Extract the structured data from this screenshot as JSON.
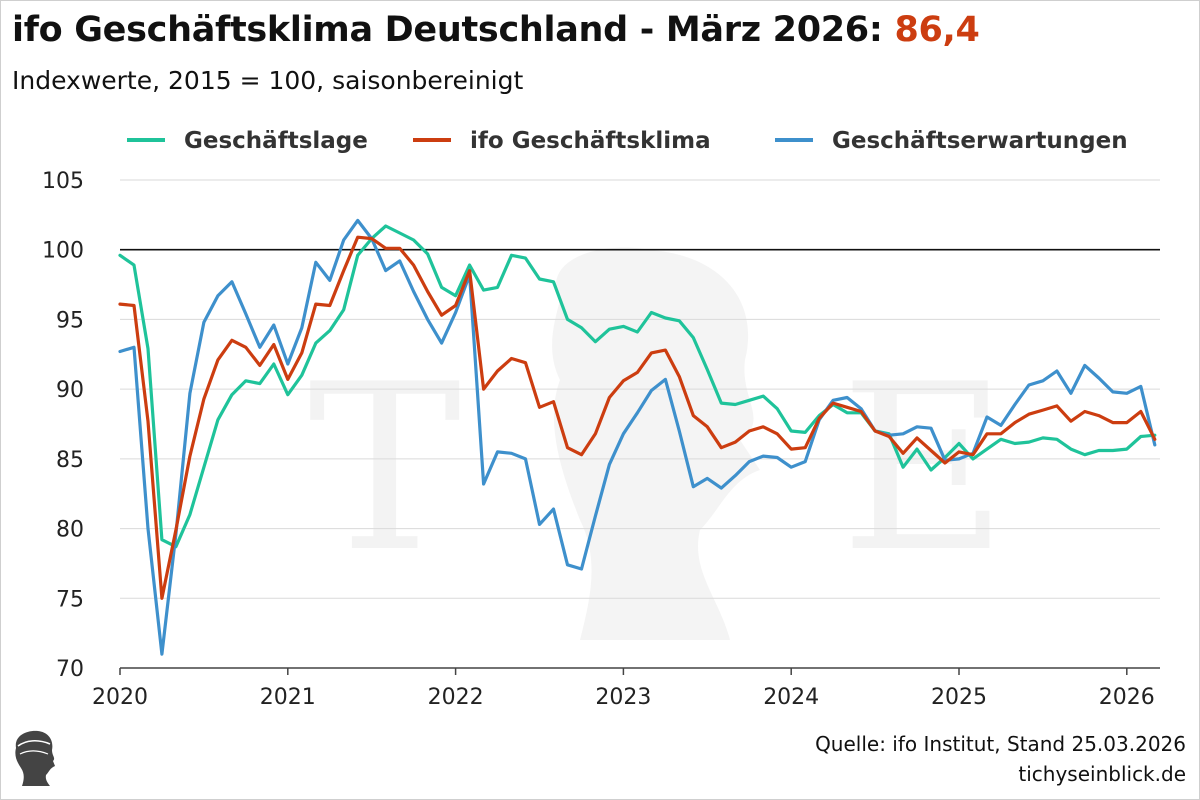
{
  "header": {
    "title": "ifo Geschäftsklima Deutschland - März 2026:",
    "title_value": "86,4",
    "subtitle": "Indexwerte, 2015 = 100, saisonbereinigt"
  },
  "footer": {
    "source": "Quelle: ifo Institut, Stand 25.03.2026",
    "publisher": "tichyseinblick.de"
  },
  "colors": {
    "geschaeftslage": "#1fc39a",
    "geschaeftsklima": "#cc3d10",
    "geschaeftserwartungen": "#3e90cc",
    "title_highlight": "#cc3d10"
  },
  "chart_data": {
    "type": "line",
    "x_start": "2020-01",
    "x_unit": "month",
    "xticks": [
      "2020",
      "2021",
      "2022",
      "2023",
      "2024",
      "2025",
      "2026"
    ],
    "yticks": [
      70,
      75,
      80,
      85,
      90,
      95,
      100,
      105
    ],
    "ylim": [
      70,
      105
    ],
    "reference_line": 100,
    "grid": "horizontal",
    "legend": "top",
    "series": [
      {
        "name": "Geschäftslage",
        "color_key": "geschaeftslage",
        "values": [
          99.6,
          98.9,
          92.9,
          79.2,
          78.7,
          81.0,
          84.4,
          87.8,
          89.6,
          90.6,
          90.4,
          91.8,
          89.6,
          91.0,
          93.3,
          94.2,
          95.7,
          99.6,
          100.8,
          101.7,
          101.2,
          100.7,
          99.7,
          97.3,
          96.7,
          98.9,
          97.1,
          97.3,
          99.6,
          99.4,
          97.9,
          97.7,
          95.0,
          94.4,
          93.4,
          94.3,
          94.5,
          94.1,
          95.5,
          95.1,
          94.9,
          93.7,
          91.4,
          89.0,
          88.9,
          89.2,
          89.5,
          88.6,
          87.0,
          86.9,
          88.1,
          88.9,
          88.3,
          88.3,
          87.0,
          86.8,
          84.4,
          85.7,
          84.2,
          85.1,
          86.1,
          85.0,
          85.7,
          86.4,
          86.1,
          86.2,
          86.5,
          86.4,
          85.7,
          85.3,
          85.6,
          85.6,
          85.7,
          86.6,
          86.7
        ]
      },
      {
        "name": "ifo Geschäftsklima",
        "color_key": "geschaeftsklima",
        "values": [
          96.1,
          96.0,
          87.7,
          75.0,
          79.9,
          85.2,
          89.3,
          92.1,
          93.5,
          93.0,
          91.7,
          93.2,
          90.7,
          92.6,
          96.1,
          96.0,
          98.5,
          100.9,
          100.8,
          100.1,
          100.1,
          98.9,
          97.0,
          95.3,
          96.0,
          98.5,
          90.0,
          91.3,
          92.2,
          91.9,
          88.7,
          89.1,
          85.8,
          85.3,
          86.8,
          89.4,
          90.6,
          91.2,
          92.6,
          92.8,
          90.9,
          88.1,
          87.3,
          85.8,
          86.2,
          87.0,
          87.3,
          86.8,
          85.7,
          85.8,
          87.9,
          89.0,
          88.7,
          88.4,
          87.0,
          86.6,
          85.4,
          86.5,
          85.6,
          84.7,
          85.5,
          85.3,
          86.8,
          86.8,
          87.6,
          88.2,
          88.5,
          88.8,
          87.7,
          88.4,
          88.1,
          87.6,
          87.6,
          88.4,
          86.4
        ]
      },
      {
        "name": "Geschäftserwartungen",
        "color_key": "geschaeftserwartungen",
        "values": [
          92.7,
          93.0,
          80.0,
          71.0,
          79.6,
          89.7,
          94.8,
          96.7,
          97.7,
          95.4,
          93.0,
          94.6,
          91.8,
          94.4,
          99.1,
          97.8,
          100.7,
          102.1,
          100.8,
          98.5,
          99.2,
          97.0,
          95.0,
          93.3,
          95.5,
          98.2,
          83.2,
          85.5,
          85.4,
          85.0,
          80.3,
          81.4,
          77.4,
          77.1,
          80.9,
          84.6,
          86.8,
          88.3,
          89.9,
          90.7,
          87.0,
          83.0,
          83.6,
          82.9,
          83.8,
          84.8,
          85.2,
          85.1,
          84.4,
          84.8,
          87.8,
          89.2,
          89.4,
          88.6,
          87.0,
          86.7,
          86.8,
          87.3,
          87.2,
          84.9,
          85.0,
          85.4,
          88.0,
          87.4,
          88.9,
          90.3,
          90.6,
          91.3,
          89.7,
          91.7,
          90.8,
          89.8,
          89.7,
          90.2,
          86.0
        ]
      }
    ]
  }
}
